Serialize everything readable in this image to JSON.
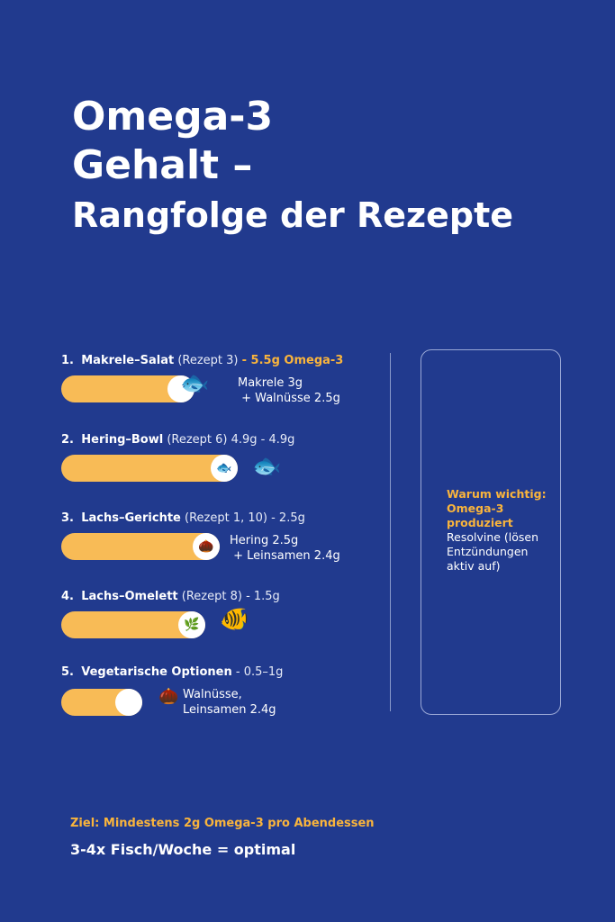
{
  "title": {
    "line1": "Omega-3",
    "line2": "Gehalt –",
    "line3": "Rangfolge der Rezepte"
  },
  "items": [
    {
      "rank": "1.",
      "name": "Makrele–Salat",
      "recipe": "(Rezept 3)",
      "amount": "- 5.5g Omega-3",
      "note1": "Makrele 3g",
      "note2": "+ Walnüsse  2.5g",
      "icon": "mackerel-icon"
    },
    {
      "rank": "2.",
      "name": "Hering–Bowl",
      "recipe": "(Rezept 6) 4.9g - 4.9g",
      "amount": "",
      "note1": "",
      "note2": "",
      "icon": "herring-icon"
    },
    {
      "rank": "3.",
      "name": "Lachs–Gerichte",
      "recipe": "(Rezept 1, 10) - 2.5g",
      "amount": "",
      "note1": "Hering 2.5g",
      "note2": "+ Leinsamen  2.4g",
      "icon": "walnut-icon"
    },
    {
      "rank": "4.",
      "name": "Lachs–Omelett",
      "recipe": "(Rezept 8) - 1.5g",
      "amount": "",
      "note1": "",
      "note2": "",
      "icon": "salmon-icon"
    },
    {
      "rank": "5.",
      "name": "Vegetarische Optionen",
      "recipe": "- 0.5–1g",
      "amount": "",
      "note1": "Walnüsse,",
      "note2": "Leinsamen 2.4g",
      "icon": "seeds-icon"
    }
  ],
  "sidebar": {
    "heading1": "Warum wichtig:",
    "heading2": "Omega-3",
    "heading3": "produziert",
    "body1": "Resolvine (lösen",
    "body2": "Entzündungen",
    "body3": "aktiv auf)"
  },
  "footer": {
    "goal": "Ziel: Mindestens 2g Omega-3 pro Abendessen",
    "optimal": "3-4x Fisch/Woche = optimal"
  },
  "colors": {
    "background": "#213a8e",
    "accent": "#f9b43c",
    "bar": "#f8bb56"
  }
}
